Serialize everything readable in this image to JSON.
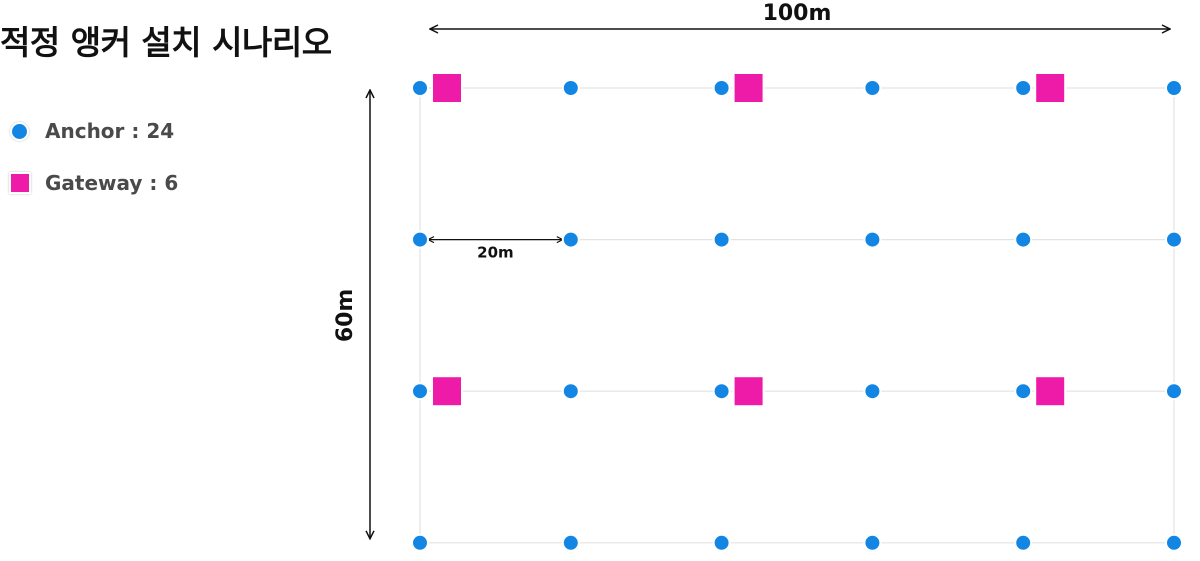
{
  "title": "적정 앵커 설치 시나리오",
  "legend": {
    "anchor_label": "Anchor : 24",
    "gateway_label": "Gateway : 6"
  },
  "dimensions": {
    "width_label": "100m",
    "height_label": "60m",
    "spacing_label": "20m"
  },
  "colors": {
    "anchor": "#1386e3",
    "gateway": "#ee1aa8",
    "grid_line": "#e3e3e3",
    "arrow": "#111111"
  },
  "layout_grid": {
    "columns_m": [
      0,
      20,
      40,
      60,
      80,
      100
    ],
    "rows_m": [
      0,
      20,
      40,
      60
    ]
  },
  "anchors": [
    {
      "x_m": 0,
      "y_m": 0
    },
    {
      "x_m": 20,
      "y_m": 0
    },
    {
      "x_m": 40,
      "y_m": 0
    },
    {
      "x_m": 60,
      "y_m": 0
    },
    {
      "x_m": 80,
      "y_m": 0
    },
    {
      "x_m": 100,
      "y_m": 0
    },
    {
      "x_m": 0,
      "y_m": 20
    },
    {
      "x_m": 20,
      "y_m": 20
    },
    {
      "x_m": 40,
      "y_m": 20
    },
    {
      "x_m": 60,
      "y_m": 20
    },
    {
      "x_m": 80,
      "y_m": 20
    },
    {
      "x_m": 100,
      "y_m": 20
    },
    {
      "x_m": 0,
      "y_m": 40
    },
    {
      "x_m": 20,
      "y_m": 40
    },
    {
      "x_m": 40,
      "y_m": 40
    },
    {
      "x_m": 60,
      "y_m": 40
    },
    {
      "x_m": 80,
      "y_m": 40
    },
    {
      "x_m": 100,
      "y_m": 40
    },
    {
      "x_m": 0,
      "y_m": 60
    },
    {
      "x_m": 20,
      "y_m": 60
    },
    {
      "x_m": 40,
      "y_m": 60
    },
    {
      "x_m": 60,
      "y_m": 60
    },
    {
      "x_m": 80,
      "y_m": 60
    },
    {
      "x_m": 100,
      "y_m": 60
    }
  ],
  "gateways": [
    {
      "x_m": 0,
      "y_m": 0
    },
    {
      "x_m": 40,
      "y_m": 0
    },
    {
      "x_m": 80,
      "y_m": 0
    },
    {
      "x_m": 0,
      "y_m": 40
    },
    {
      "x_m": 40,
      "y_m": 40
    },
    {
      "x_m": 80,
      "y_m": 40
    }
  ]
}
